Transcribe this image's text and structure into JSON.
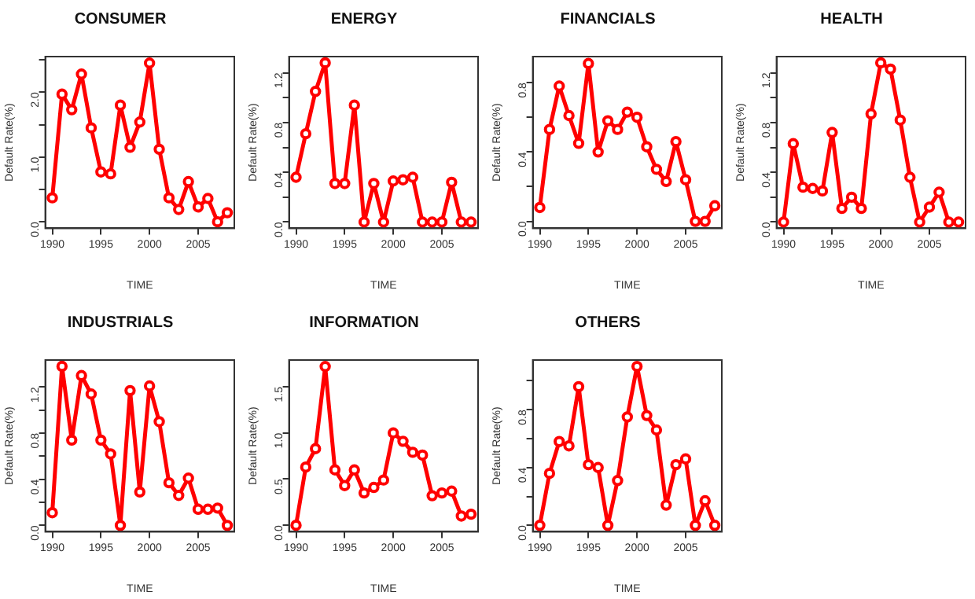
{
  "chart_data": [
    {
      "type": "line",
      "title": "CONSUMER",
      "xlabel": "TIME",
      "ylabel": "Default Rate(%)",
      "marker": "circle",
      "grid": false,
      "legend": false,
      "x": [
        1990,
        1991,
        1992,
        1993,
        1994,
        1995,
        1996,
        1997,
        1998,
        1999,
        2000,
        2001,
        2002,
        2003,
        2004,
        2005,
        2006,
        2007,
        2008
      ],
      "xlim": [
        1989.28,
        2008.72
      ],
      "xticks": [
        1990,
        1995,
        2000,
        2005
      ],
      "ylim": [
        -0.1,
        2.55
      ],
      "yticks": [
        {
          "value": 0,
          "label": "0.0"
        },
        {
          "value": 0.5,
          "label": null
        },
        {
          "value": 1,
          "label": "1.0"
        },
        {
          "value": 1.5,
          "label": null
        },
        {
          "value": 2,
          "label": "2.0"
        },
        {
          "value": 2.5,
          "label": null
        }
      ],
      "series": [
        {
          "color": "#ff0000",
          "values": [
            0.37,
            1.97,
            1.73,
            2.28,
            1.45,
            0.77,
            0.74,
            1.8,
            1.15,
            1.54,
            2.45,
            1.12,
            0.37,
            0.19,
            0.62,
            0.23,
            0.36,
            0,
            0.14
          ]
        }
      ]
    },
    {
      "type": "line",
      "title": "ENERGY",
      "xlabel": "TIME",
      "ylabel": "Default Rate(%)",
      "marker": "circle",
      "grid": false,
      "legend": false,
      "x": [
        1990,
        1991,
        1992,
        1993,
        1994,
        1995,
        1996,
        1997,
        1998,
        1999,
        2000,
        2001,
        2002,
        2003,
        2004,
        2005,
        2006,
        2007,
        2008
      ],
      "xlim": [
        1989.28,
        2008.72
      ],
      "xticks": [
        1990,
        1995,
        2000,
        2005
      ],
      "ylim": [
        -0.05,
        1.33
      ],
      "yticks": [
        {
          "value": 0,
          "label": "0.0"
        },
        {
          "value": 0.2,
          "label": null
        },
        0.4,
        {
          "value": 0.6,
          "label": null
        },
        0.8,
        {
          "value": 1,
          "label": null
        },
        1.2
      ],
      "series": [
        {
          "color": "#ff0000",
          "values": [
            0.36,
            0.71,
            1.05,
            1.28,
            0.31,
            0.31,
            0.94,
            0,
            0.31,
            0,
            0.33,
            0.34,
            0.36,
            0,
            0,
            0,
            0.32,
            0,
            0
          ]
        }
      ]
    },
    {
      "type": "line",
      "title": "FINANCIALS",
      "xlabel": "TIME",
      "ylabel": "Default Rate(%)",
      "marker": "circle",
      "grid": false,
      "legend": false,
      "x": [
        1990,
        1991,
        1992,
        1993,
        1994,
        1995,
        1996,
        1997,
        1998,
        1999,
        2000,
        2001,
        2002,
        2003,
        2004,
        2005,
        2006,
        2007,
        2008
      ],
      "xlim": [
        1989.28,
        2008.72
      ],
      "xticks": [
        1990,
        1995,
        2000,
        2005
      ],
      "ylim": [
        -0.04,
        0.95
      ],
      "yticks": [
        {
          "value": 0,
          "label": "0.0"
        },
        {
          "value": 0.2,
          "label": null
        },
        0.4,
        {
          "value": 0.6,
          "label": null
        },
        0.8
      ],
      "series": [
        {
          "color": "#ff0000",
          "values": [
            0.08,
            0.53,
            0.78,
            0.61,
            0.45,
            0.91,
            0.4,
            0.58,
            0.53,
            0.63,
            0.6,
            0.43,
            0.3,
            0.23,
            0.46,
            0.24,
            0,
            0,
            0.09
          ]
        }
      ]
    },
    {
      "type": "line",
      "title": "HEALTH",
      "xlabel": "TIME",
      "ylabel": "Default Rate(%)",
      "marker": "circle",
      "grid": false,
      "legend": false,
      "x": [
        1990,
        1991,
        1992,
        1993,
        1994,
        1995,
        1996,
        1997,
        1998,
        1999,
        2000,
        2001,
        2002,
        2003,
        2004,
        2005,
        2006,
        2007,
        2008
      ],
      "xlim": [
        1989.28,
        2008.72
      ],
      "xticks": [
        1990,
        1995,
        2000,
        2005
      ],
      "ylim": [
        -0.05,
        1.33
      ],
      "yticks": [
        {
          "value": 0,
          "label": "0.0"
        },
        {
          "value": 0.2,
          "label": null
        },
        0.4,
        {
          "value": 0.6,
          "label": null
        },
        0.8,
        {
          "value": 1,
          "label": null
        },
        1.2
      ],
      "series": [
        {
          "color": "#ff0000",
          "values": [
            0,
            0.63,
            0.28,
            0.27,
            0.25,
            0.72,
            0.11,
            0.2,
            0.11,
            0.87,
            1.28,
            1.23,
            0.82,
            0.36,
            0,
            0.12,
            0.24,
            0,
            0
          ]
        }
      ]
    },
    {
      "type": "line",
      "title": "INDUSTRIALS",
      "xlabel": "TIME",
      "ylabel": "Default Rate(%)",
      "marker": "circle",
      "grid": false,
      "legend": false,
      "x": [
        1990,
        1991,
        1992,
        1993,
        1994,
        1995,
        1996,
        1997,
        1998,
        1999,
        2000,
        2001,
        2002,
        2003,
        2004,
        2005,
        2006,
        2007,
        2008
      ],
      "xlim": [
        1989.28,
        2008.72
      ],
      "xticks": [
        1990,
        1995,
        2000,
        2005
      ],
      "ylim": [
        -0.055,
        1.435
      ],
      "yticks": [
        {
          "value": 0,
          "label": "0.0"
        },
        {
          "value": 0.2,
          "label": null
        },
        0.4,
        {
          "value": 0.6,
          "label": null
        },
        0.8,
        {
          "value": 1,
          "label": null
        },
        1.2
      ],
      "series": [
        {
          "color": "#ff0000",
          "values": [
            0.11,
            1.38,
            0.74,
            1.3,
            1.14,
            0.74,
            0.62,
            0,
            1.17,
            0.29,
            1.21,
            0.9,
            0.37,
            0.26,
            0.41,
            0.14,
            0.14,
            0.15,
            0
          ]
        }
      ]
    },
    {
      "type": "line",
      "title": "INFORMATION",
      "xlabel": "TIME",
      "ylabel": "Default Rate(%)",
      "marker": "circle",
      "grid": false,
      "legend": false,
      "x": [
        1990,
        1991,
        1992,
        1993,
        1994,
        1995,
        1996,
        1997,
        1998,
        1999,
        2000,
        2001,
        2002,
        2003,
        2004,
        2005,
        2006,
        2007,
        2008
      ],
      "xlim": [
        1989.28,
        2008.72
      ],
      "xticks": [
        1990,
        1995,
        2000,
        2005
      ],
      "ylim": [
        -0.07,
        1.79
      ],
      "yticks": [
        {
          "value": 0,
          "label": "0.0"
        },
        0.5,
        {
          "value": 1,
          "label": "1.0"
        },
        1.5
      ],
      "series": [
        {
          "color": "#ff0000",
          "values": [
            0,
            0.63,
            0.83,
            1.72,
            0.6,
            0.43,
            0.6,
            0.35,
            0.41,
            0.49,
            1,
            0.91,
            0.79,
            0.76,
            0.32,
            0.35,
            0.37,
            0.1,
            0.12
          ]
        }
      ]
    },
    {
      "type": "line",
      "title": "OTHERS",
      "xlabel": "TIME",
      "ylabel": "Default Rate(%)",
      "marker": "circle",
      "grid": false,
      "legend": false,
      "x": [
        1990,
        1991,
        1992,
        1993,
        1994,
        1995,
        1996,
        1997,
        1998,
        1999,
        2000,
        2001,
        2002,
        2003,
        2004,
        2005,
        2006,
        2007,
        2008
      ],
      "xlim": [
        1989.28,
        2008.72
      ],
      "xticks": [
        1990,
        1995,
        2000,
        2005
      ],
      "ylim": [
        -0.044,
        1.144
      ],
      "yticks": [
        {
          "value": 0,
          "label": "0.0"
        },
        {
          "value": 0.2,
          "label": null
        },
        0.4,
        {
          "value": 0.6,
          "label": null
        },
        0.8,
        {
          "value": 1,
          "label": null
        }
      ],
      "series": [
        {
          "color": "#ff0000",
          "values": [
            0,
            0.36,
            0.58,
            0.55,
            0.96,
            0.42,
            0.4,
            0,
            0.31,
            0.75,
            1.1,
            0.76,
            0.66,
            0.14,
            0.42,
            0.46,
            0,
            0.17,
            0
          ]
        }
      ]
    }
  ]
}
